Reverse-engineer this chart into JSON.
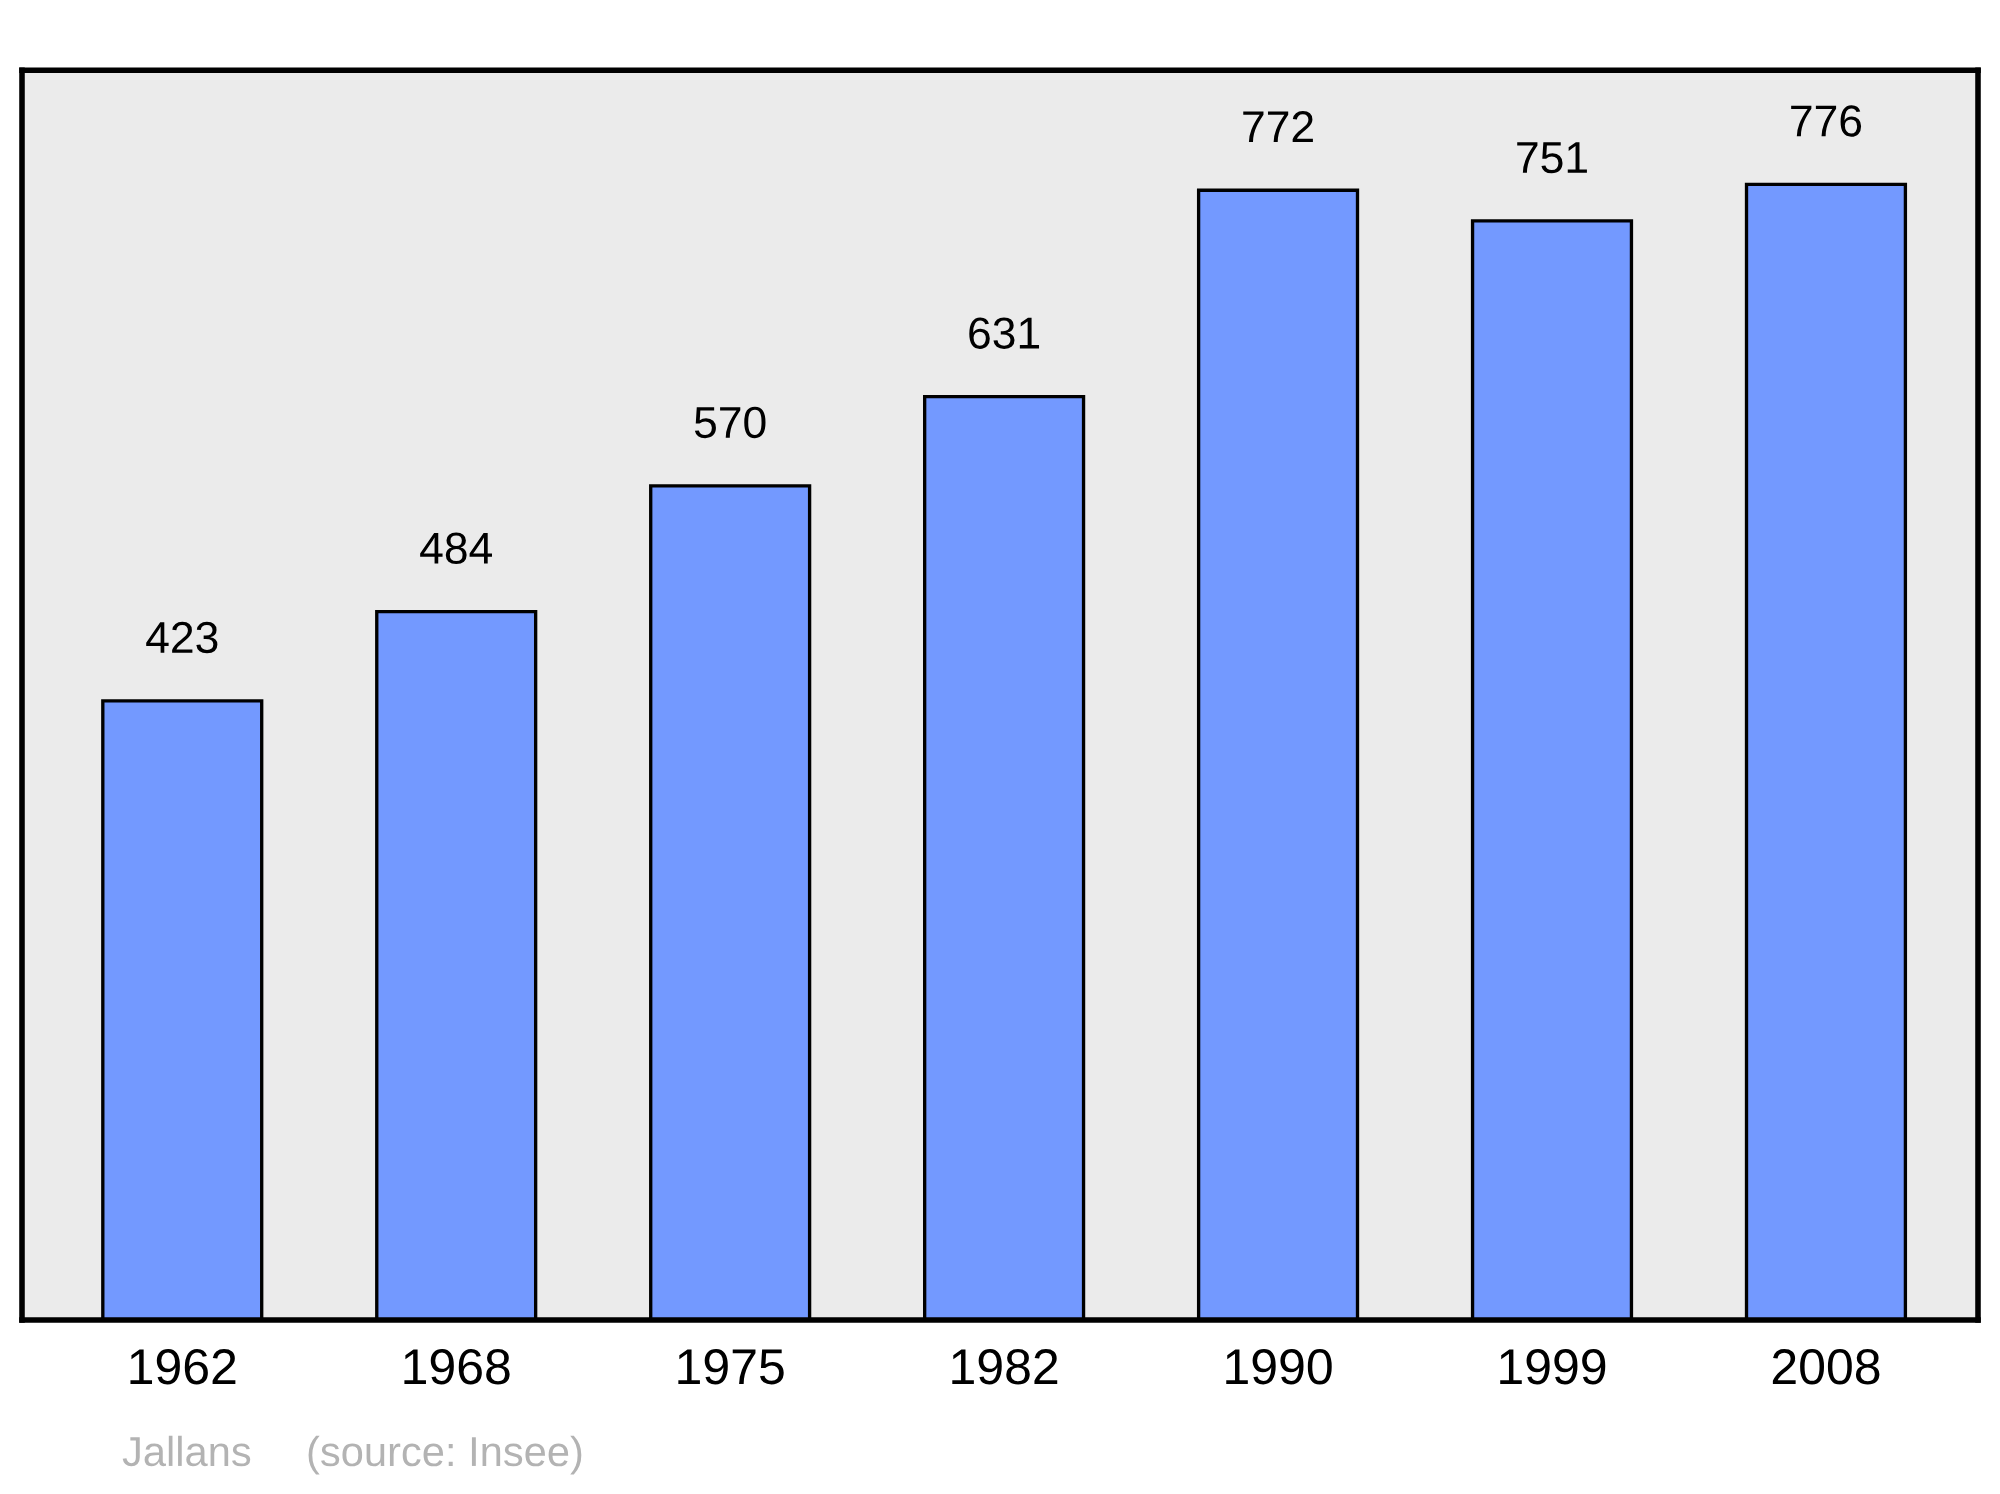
{
  "chart_data": {
    "type": "bar",
    "categories": [
      "1962",
      "1968",
      "1975",
      "1982",
      "1990",
      "1999",
      "2008"
    ],
    "values": [
      423,
      484,
      570,
      631,
      772,
      751,
      776
    ],
    "color": "#7399ff",
    "ylim": [
      0,
      854
    ],
    "tick_labels": "x",
    "data_labels": true,
    "grid": false,
    "legend": false,
    "annotations": [
      "Jallans",
      "(source: Insee)"
    ]
  }
}
